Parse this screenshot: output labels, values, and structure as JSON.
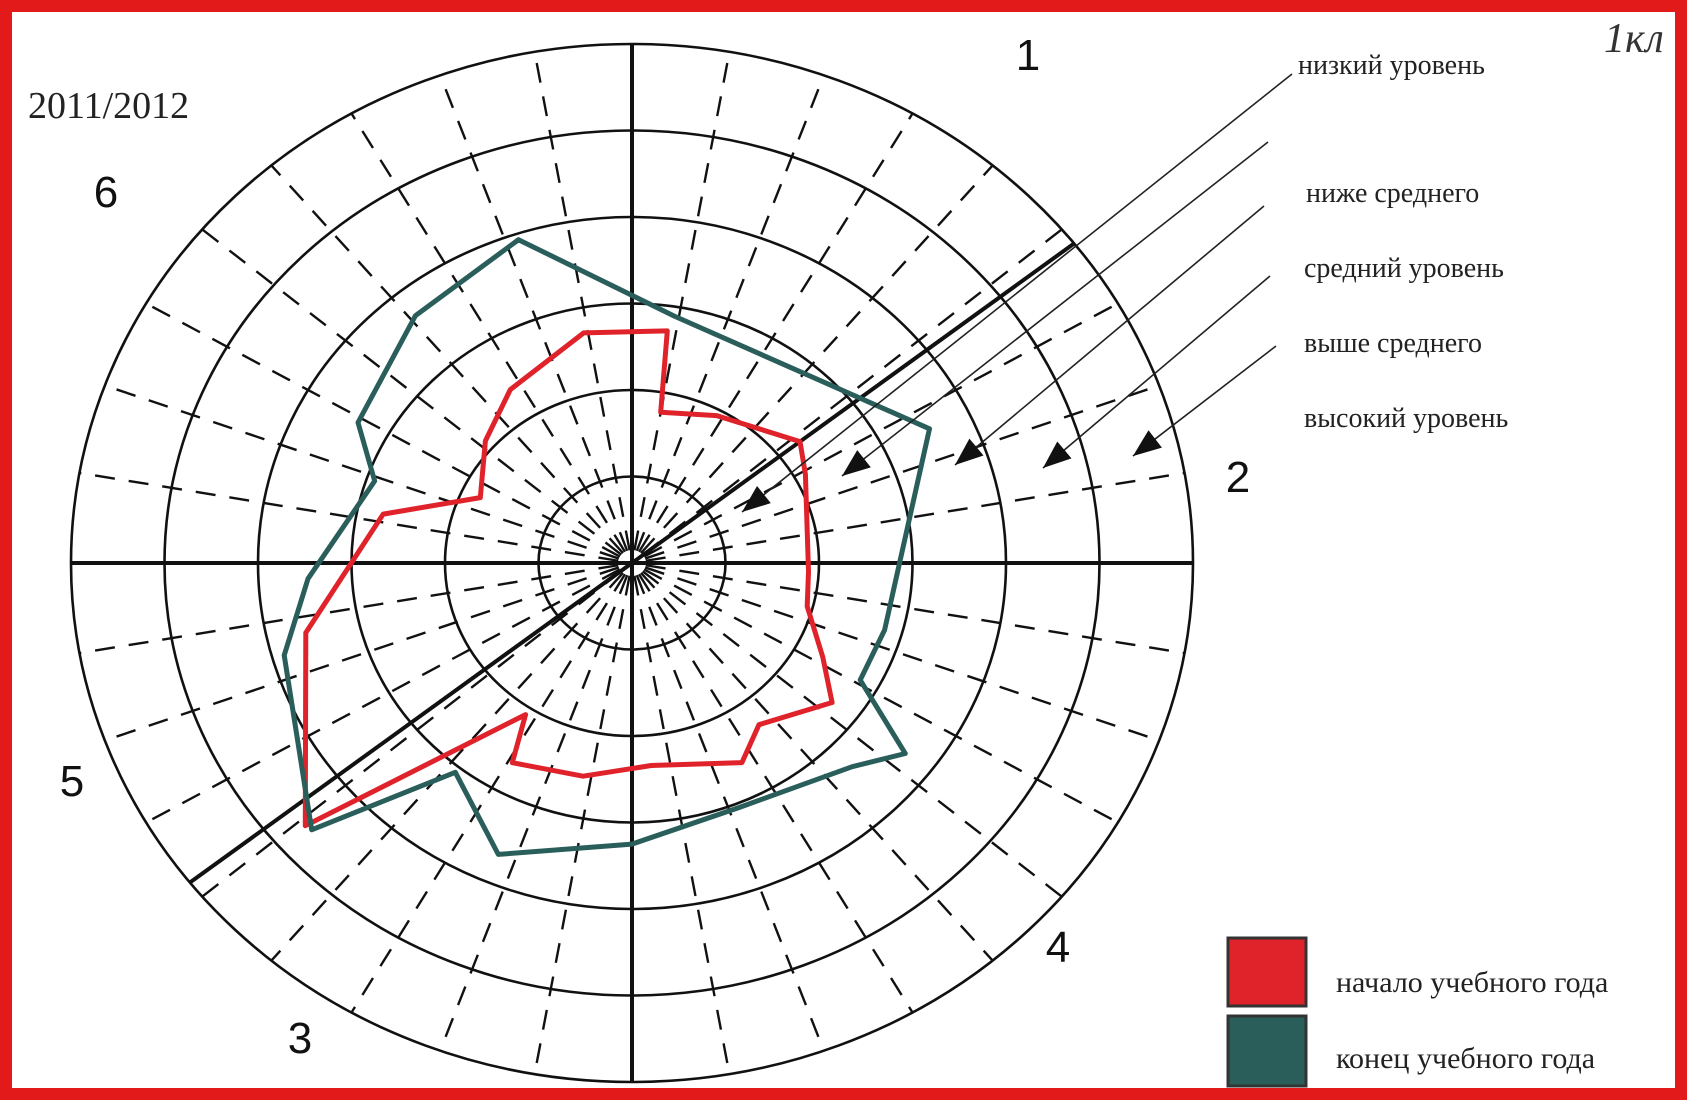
{
  "header": {
    "year_label": "2011/2012",
    "corner_note": "1кл"
  },
  "chart_data": {
    "type": "radar",
    "sector_labels": [
      "1",
      "2",
      "3",
      "4",
      "5",
      "6"
    ],
    "level_labels": [
      "низкий уровень",
      "ниже среднего",
      "средний уровень",
      "выше среднего",
      "высокий уровень"
    ],
    "rings": [
      1,
      2,
      3,
      4,
      5,
      6
    ],
    "series": [
      {
        "name": "начало учебного года",
        "color": "#e0232b",
        "points": [
          [
            80,
            1.77
          ],
          [
            62,
            1.93
          ],
          [
            38,
            2.28
          ],
          [
            29,
            2.12
          ],
          [
            -3,
            1.89
          ],
          [
            -15,
            1.94
          ],
          [
            -28,
            2.31
          ],
          [
            -37,
            2.68
          ],
          [
            -54,
            2.31
          ],
          [
            -63,
            2.59
          ],
          [
            -85,
            2.35
          ],
          [
            -102,
            2.52
          ],
          [
            -119,
            2.64
          ],
          [
            -123,
            2.09
          ],
          [
            -139,
            4.63
          ],
          [
            -167,
            3.58
          ],
          [
            168,
            2.72
          ],
          [
            155,
            1.79
          ],
          [
            138,
            2.11
          ],
          [
            123,
            2.39
          ],
          [
            101,
            2.71
          ],
          [
            82,
            2.71
          ]
        ]
      },
      {
        "name": "конец учебного года",
        "color": "#2a5e5a",
        "points": [
          [
            81,
            2.89
          ],
          [
            26,
            3.54
          ],
          [
            -16,
            2.81
          ],
          [
            -29,
            2.79
          ],
          [
            -37,
            3.66
          ],
          [
            -45,
            3.33
          ],
          [
            -68,
            3.05
          ],
          [
            -90,
            3.25
          ],
          [
            -113,
            3.66
          ],
          [
            -128,
            3.07
          ],
          [
            -138,
            4.61
          ],
          [
            -164,
            3.87
          ],
          [
            -177,
            3.47
          ],
          [
            161,
            2.91
          ],
          [
            151,
            3.35
          ],
          [
            129,
            3.68
          ],
          [
            108,
            3.93
          ]
        ]
      }
    ],
    "legend": [
      {
        "label": "начало учебного года",
        "color": "#e0232b"
      },
      {
        "label": "конец учебного года",
        "color": "#2a5e5a"
      }
    ],
    "legend_position": "bottom-right",
    "grid": true
  }
}
